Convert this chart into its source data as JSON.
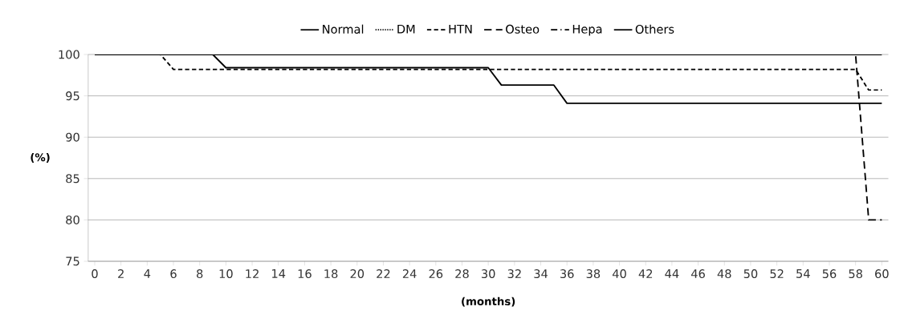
{
  "chart_data": {
    "type": "line",
    "xlabel": "(months)",
    "ylabel": "(%)",
    "xlim": [
      -0.5,
      60.5
    ],
    "xticks": [
      0,
      2,
      4,
      6,
      8,
      10,
      12,
      14,
      16,
      18,
      20,
      22,
      24,
      26,
      28,
      30,
      32,
      34,
      36,
      38,
      40,
      42,
      44,
      46,
      48,
      50,
      52,
      54,
      56,
      58,
      60
    ],
    "ylim": [
      75,
      100
    ],
    "yticks": [
      75,
      80,
      85,
      90,
      95,
      100
    ],
    "grid": "y",
    "legend": "top",
    "marker": "none",
    "series": [
      {
        "name": "Normal",
        "color": "#000000",
        "line_style": "solid",
        "x": [
          0,
          60
        ],
        "values": [
          100,
          100
        ]
      },
      {
        "name": "DM",
        "color": "#000000",
        "line_style": "dotted"
      },
      {
        "name": "HTN",
        "color": "#000000",
        "line_style": "dashed",
        "x": [
          0,
          5,
          6,
          58,
          59,
          60
        ],
        "values": [
          100,
          100,
          98.2,
          98.2,
          95.7,
          95.7
        ]
      },
      {
        "name": "Osteo",
        "color": "#000000",
        "line_style": "longdashed",
        "x": [
          0,
          58,
          59,
          60
        ],
        "values": [
          100,
          100,
          80,
          80
        ]
      },
      {
        "name": "Hepa",
        "color": "#000000",
        "line_style": "dashdotted"
      },
      {
        "name": "Others",
        "color": "#000000",
        "line_style": "solid",
        "x": [
          0,
          9,
          10,
          30,
          31,
          35,
          36,
          60
        ],
        "values": [
          100,
          100,
          98.4,
          98.4,
          96.3,
          96.3,
          94.1,
          94.1
        ]
      }
    ]
  }
}
